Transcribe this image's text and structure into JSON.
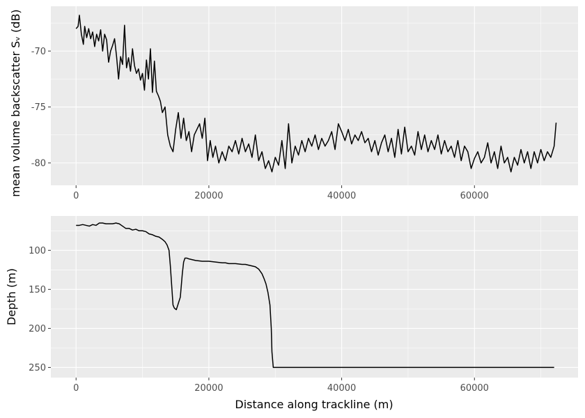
{
  "chart_data": [
    {
      "type": "line",
      "ylabel": "mean volume backscatter Sᵥ (dB)",
      "xlabel": "",
      "xlim": [
        -3800,
        75600
      ],
      "ylim": [
        -82,
        -66
      ],
      "x_ticks": [
        0,
        20000,
        40000,
        60000
      ],
      "y_ticks": [
        -80,
        -75,
        -70
      ],
      "grid": true,
      "series": [
        {
          "x": [
            0,
            300,
            500,
            800,
            1100,
            1300,
            1600,
            1900,
            2200,
            2500,
            2800,
            3100,
            3400,
            3700,
            4000,
            4300,
            4600,
            4900,
            5200,
            5500,
            5800,
            6100,
            6400,
            6700,
            7000,
            7300,
            7600,
            7900,
            8200,
            8500,
            8800,
            9100,
            9400,
            9700,
            10000,
            10300,
            10600,
            10900,
            11200,
            11500,
            11800,
            12100,
            12400,
            12700,
            13000,
            13400,
            13800,
            14200,
            14600,
            15000,
            15400,
            15800,
            16200,
            16600,
            17000,
            17400,
            17800,
            18200,
            18600,
            19000,
            19400,
            19800,
            20200,
            20600,
            21000,
            21500,
            22000,
            22500,
            23000,
            23500,
            24000,
            24500,
            25000,
            25500,
            26000,
            26500,
            27000,
            27500,
            28000,
            28500,
            29000,
            29500,
            30000,
            30500,
            31000,
            31500,
            32000,
            32500,
            33000,
            33500,
            34000,
            34500,
            35000,
            35500,
            36000,
            36500,
            37000,
            37500,
            38000,
            38500,
            39000,
            39500,
            40000,
            40500,
            41000,
            41500,
            42000,
            42500,
            43000,
            43500,
            44000,
            44500,
            45000,
            45500,
            46000,
            46500,
            47000,
            47500,
            48000,
            48500,
            49000,
            49500,
            50000,
            50500,
            51000,
            51500,
            52000,
            52500,
            53000,
            53500,
            54000,
            54500,
            55000,
            55500,
            56000,
            56500,
            57000,
            57500,
            58000,
            58500,
            59000,
            59500,
            60000,
            60500,
            61000,
            61500,
            62000,
            62500,
            63000,
            63500,
            64000,
            64500,
            65000,
            65500,
            66000,
            66500,
            67000,
            67500,
            68000,
            68500,
            69000,
            69500,
            70000,
            70500,
            71000,
            71500,
            72000,
            72300
          ],
          "y": [
            -68.0,
            -67.8,
            -66.8,
            -68.5,
            -69.4,
            -67.8,
            -68.8,
            -68.0,
            -68.9,
            -68.3,
            -69.6,
            -68.5,
            -69.1,
            -68.1,
            -70.0,
            -68.5,
            -69.0,
            -71.0,
            -70.0,
            -69.5,
            -68.9,
            -70.5,
            -72.5,
            -70.5,
            -71.2,
            -67.7,
            -71.5,
            -70.6,
            -71.8,
            -69.8,
            -71.3,
            -72.0,
            -71.6,
            -72.6,
            -72.0,
            -73.5,
            -70.8,
            -72.5,
            -69.8,
            -73.7,
            -70.9,
            -73.6,
            -74.0,
            -74.5,
            -75.5,
            -75.0,
            -77.5,
            -78.5,
            -79.0,
            -77.0,
            -75.5,
            -77.8,
            -76.0,
            -78.0,
            -77.2,
            -79.0,
            -77.5,
            -77.0,
            -76.5,
            -77.8,
            -76.0,
            -79.8,
            -78.0,
            -79.5,
            -78.5,
            -80.0,
            -79.0,
            -79.8,
            -78.5,
            -79.0,
            -78.0,
            -79.2,
            -77.8,
            -79.0,
            -78.3,
            -79.5,
            -77.5,
            -79.8,
            -79.0,
            -80.5,
            -79.8,
            -80.8,
            -79.5,
            -80.2,
            -78.0,
            -80.5,
            -76.5,
            -80.0,
            -78.5,
            -79.3,
            -78.0,
            -79.0,
            -77.8,
            -78.5,
            -77.5,
            -78.8,
            -77.8,
            -78.5,
            -78.0,
            -77.2,
            -78.8,
            -76.5,
            -77.2,
            -78.0,
            -77.0,
            -78.3,
            -77.5,
            -78.0,
            -77.2,
            -78.2,
            -77.8,
            -79.0,
            -78.0,
            -79.3,
            -78.2,
            -77.5,
            -79.0,
            -77.8,
            -79.5,
            -77.0,
            -79.2,
            -76.8,
            -79.0,
            -78.5,
            -79.3,
            -77.2,
            -78.8,
            -77.5,
            -79.0,
            -78.0,
            -78.8,
            -77.5,
            -79.2,
            -78.0,
            -79.0,
            -78.5,
            -79.5,
            -78.0,
            -79.8,
            -78.5,
            -79.0,
            -80.5,
            -79.6,
            -79.0,
            -80.0,
            -79.5,
            -78.2,
            -80.0,
            -79.0,
            -80.5,
            -78.5,
            -80.0,
            -79.5,
            -80.8,
            -79.5,
            -80.2,
            -78.8,
            -80.0,
            -79.0,
            -80.5,
            -79.0,
            -80.0,
            -78.8,
            -79.8,
            -79.0,
            -79.5,
            -78.5,
            -76.4
          ]
        }
      ]
    },
    {
      "type": "line",
      "xlabel": "Distance along trackline (m)",
      "ylabel": "Depth (m)",
      "xlim": [
        -3800,
        75600
      ],
      "ylim": [
        263,
        56
      ],
      "y_reversed": true,
      "x_ticks": [
        0,
        20000,
        40000,
        60000
      ],
      "y_ticks": [
        100,
        150,
        200,
        250
      ],
      "grid": true,
      "series": [
        {
          "x": [
            0,
            500,
            1000,
            1500,
            2000,
            2500,
            3000,
            3500,
            4000,
            4500,
            5000,
            5500,
            6000,
            6500,
            7000,
            7500,
            8000,
            8500,
            9000,
            9500,
            10000,
            10500,
            11000,
            11500,
            12000,
            12500,
            13000,
            13400,
            13700,
            14000,
            14200,
            14400,
            14600,
            14800,
            15100,
            15400,
            15700,
            16000,
            16200,
            16400,
            16700,
            17000,
            17500,
            18000,
            19000,
            20000,
            21000,
            22000,
            22500,
            23000,
            24000,
            25000,
            25500,
            26000,
            26500,
            27000,
            27500,
            28000,
            28300,
            28600,
            28900,
            29200,
            29400,
            29500,
            29700,
            30000,
            35000,
            40000,
            45000,
            50000,
            55000,
            60000,
            65000,
            70000,
            72000
          ],
          "y": [
            68,
            68,
            67,
            68,
            69,
            67,
            68,
            65,
            65,
            66,
            66,
            66,
            65,
            66,
            69,
            72,
            72,
            74,
            73,
            75,
            75,
            76,
            79,
            80,
            82,
            83,
            86,
            89,
            93,
            100,
            120,
            145,
            170,
            174,
            176,
            168,
            160,
            130,
            115,
            110,
            110,
            111,
            112,
            113,
            114,
            114,
            115,
            116,
            116,
            117,
            117,
            118,
            118,
            119,
            120,
            121,
            124,
            130,
            136,
            143,
            154,
            170,
            200,
            230,
            250,
            250,
            250,
            250,
            250,
            250,
            250,
            250,
            250,
            250,
            250
          ]
        }
      ]
    }
  ]
}
